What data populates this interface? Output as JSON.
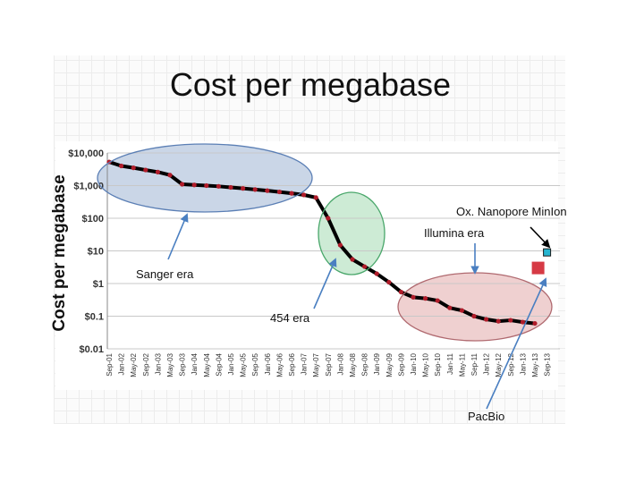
{
  "title": "Cost per megabase",
  "chart_data": {
    "type": "line",
    "title": "Cost per megabase",
    "ylabel": "Cost per megabase",
    "xlabel": "",
    "y_scale": "log",
    "ylim": [
      0.01,
      10000
    ],
    "y_ticks": [
      {
        "value": 10000,
        "label": "$10,000"
      },
      {
        "value": 1000,
        "label": "$1,000"
      },
      {
        "value": 100,
        "label": "$100"
      },
      {
        "value": 10,
        "label": "$10"
      },
      {
        "value": 1,
        "label": "$1"
      },
      {
        "value": 0.1,
        "label": "$0.1"
      },
      {
        "value": 0.01,
        "label": "$0.01"
      }
    ],
    "grid": "horizontal",
    "x_tick_labels": [
      "Sep-01",
      "Jan-02",
      "May-02",
      "Sep-02",
      "Jan-03",
      "May-03",
      "Sep-03",
      "Jan-04",
      "May-04",
      "Sep-04",
      "Jan-05",
      "May-05",
      "Sep-05",
      "Jan-06",
      "May-06",
      "Sep-06",
      "Jan-07",
      "May-07",
      "Sep-07",
      "Jan-08",
      "May-08",
      "Sep-08",
      "Jan-09",
      "May-09",
      "Sep-09",
      "Jan-10",
      "May-10",
      "Sep-10",
      "Jan-11",
      "May-11",
      "Sep-11",
      "Jan-12",
      "May-12",
      "Sep-12",
      "Jan-13",
      "May-13",
      "Sep-13"
    ],
    "series": [
      {
        "color": "#000000",
        "marker_color": "#b01c2a",
        "points": [
          [
            "Sep-01",
            5300
          ],
          [
            "Jan-02",
            4000
          ],
          [
            "May-02",
            3500
          ],
          [
            "Sep-02",
            3000
          ],
          [
            "Jan-03",
            2600
          ],
          [
            "May-03",
            2100
          ],
          [
            "Sep-03",
            1100
          ],
          [
            "Jan-04",
            1050
          ],
          [
            "May-04",
            1000
          ],
          [
            "Sep-04",
            950
          ],
          [
            "Jan-05",
            880
          ],
          [
            "May-05",
            820
          ],
          [
            "Sep-05",
            760
          ],
          [
            "Jan-06",
            700
          ],
          [
            "May-06",
            640
          ],
          [
            "Sep-06",
            580
          ],
          [
            "Jan-07",
            520
          ],
          [
            "May-07",
            430
          ],
          [
            "Sep-07",
            100
          ],
          [
            "Jan-08",
            15
          ],
          [
            "May-08",
            5.5
          ],
          [
            "Sep-08",
            3.3
          ],
          [
            "Jan-09",
            2.0
          ],
          [
            "May-09",
            1.1
          ],
          [
            "Sep-09",
            0.55
          ],
          [
            "Jan-10",
            0.38
          ],
          [
            "May-10",
            0.35
          ],
          [
            "Sep-10",
            0.3
          ],
          [
            "Jan-11",
            0.18
          ],
          [
            "May-11",
            0.15
          ],
          [
            "Sep-11",
            0.1
          ],
          [
            "Jan-12",
            0.08
          ],
          [
            "May-12",
            0.07
          ],
          [
            "Sep-12",
            0.075
          ],
          [
            "Jan-13",
            0.066
          ],
          [
            "May-13",
            0.06
          ]
        ]
      }
    ],
    "extra_points": [
      {
        "x": "Sep-13",
        "y": 9,
        "color": "#26b5d0",
        "shape": "square"
      },
      {
        "x": "Sep-13",
        "y": 3,
        "color": "#d63a45",
        "shape": "square"
      }
    ],
    "highlight_regions": [
      {
        "label": "Sanger era",
        "fill": "#9fb4d3",
        "stroke": "#5b7fb5"
      },
      {
        "label": "454 era",
        "fill": "#a4dbb3",
        "stroke": "#4aa76b"
      },
      {
        "label": "Illumina era",
        "fill": "#e1a9aa",
        "stroke": "#b06a70"
      }
    ]
  },
  "annotations": {
    "sanger": "Sanger era",
    "e454": "454 era",
    "illumina": "Illumina era",
    "nanopore": "Ox. Nanopore MinIon",
    "pacbio": "PacBio"
  },
  "colors": {
    "line": "#000000",
    "marker": "#b01c2a",
    "arrow": "#4a7fc1",
    "grid": "#c8c8c8"
  }
}
